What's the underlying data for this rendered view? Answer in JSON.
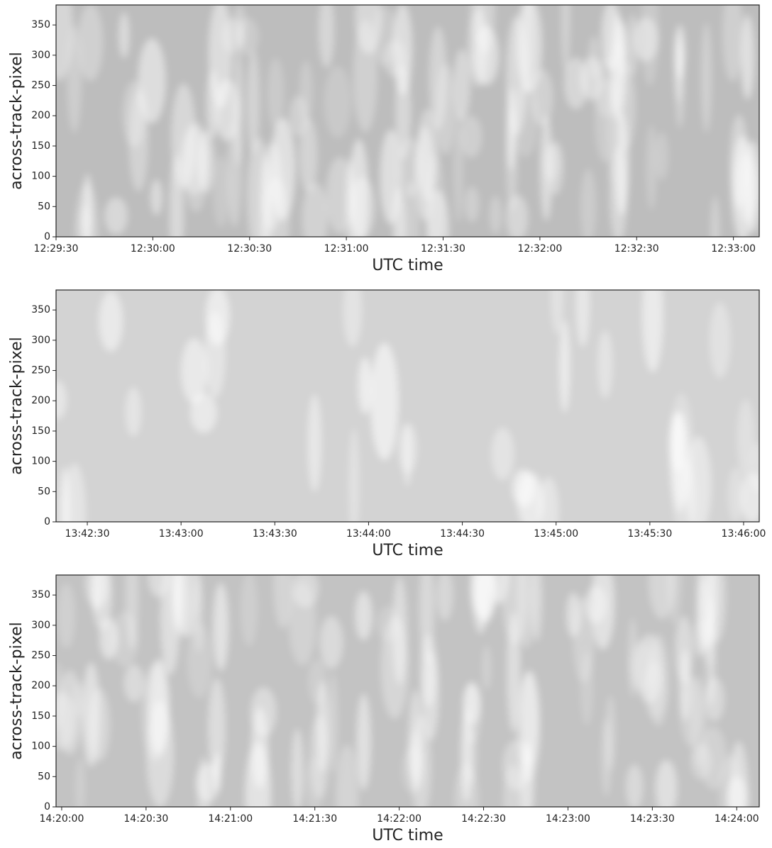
{
  "chart_data": [
    {
      "type": "heatmap",
      "xlabel": "UTC time",
      "ylabel": "across-track-pixel",
      "color": "#bdbdbd",
      "xlim": [
        44970,
        45188
      ],
      "xticks": [
        {
          "value": 44970,
          "label": "12:29:30"
        },
        {
          "value": 45000,
          "label": "12:30:00"
        },
        {
          "value": 45030,
          "label": "12:30:30"
        },
        {
          "value": 45060,
          "label": "12:31:00"
        },
        {
          "value": 45090,
          "label": "12:31:30"
        },
        {
          "value": 45120,
          "label": "12:32:00"
        },
        {
          "value": 45150,
          "label": "12:32:30"
        },
        {
          "value": 45180,
          "label": "12:33:00"
        }
      ],
      "ylim": [
        0,
        383
      ],
      "yticks": [
        0,
        50,
        100,
        150,
        200,
        250,
        300,
        350
      ]
    },
    {
      "type": "heatmap",
      "xlabel": "UTC time",
      "ylabel": "across-track-pixel",
      "color": "#d3d3d3",
      "xlim": [
        49340,
        49565
      ],
      "xticks": [
        {
          "value": 49350,
          "label": "13:42:30"
        },
        {
          "value": 49380,
          "label": "13:43:00"
        },
        {
          "value": 49410,
          "label": "13:43:30"
        },
        {
          "value": 49440,
          "label": "13:44:00"
        },
        {
          "value": 49470,
          "label": "13:44:30"
        },
        {
          "value": 49500,
          "label": "13:45:00"
        },
        {
          "value": 49530,
          "label": "13:45:30"
        },
        {
          "value": 49560,
          "label": "13:46:00"
        }
      ],
      "ylim": [
        0,
        383
      ],
      "yticks": [
        0,
        50,
        100,
        150,
        200,
        250,
        300,
        350
      ]
    },
    {
      "type": "heatmap",
      "xlabel": "UTC time",
      "ylabel": "across-track-pixel",
      "color": "#c3c3c3",
      "xlim": [
        51598,
        51848
      ],
      "xticks": [
        {
          "value": 51600,
          "label": "14:20:00"
        },
        {
          "value": 51630,
          "label": "14:20:30"
        },
        {
          "value": 51660,
          "label": "14:21:00"
        },
        {
          "value": 51690,
          "label": "14:21:30"
        },
        {
          "value": 51720,
          "label": "14:22:00"
        },
        {
          "value": 51750,
          "label": "14:22:30"
        },
        {
          "value": 51780,
          "label": "14:23:00"
        },
        {
          "value": 51810,
          "label": "14:23:30"
        },
        {
          "value": 51840,
          "label": "14:24:00"
        }
      ],
      "ylim": [
        0,
        383
      ],
      "yticks": [
        0,
        50,
        100,
        150,
        200,
        250,
        300,
        350
      ]
    }
  ]
}
